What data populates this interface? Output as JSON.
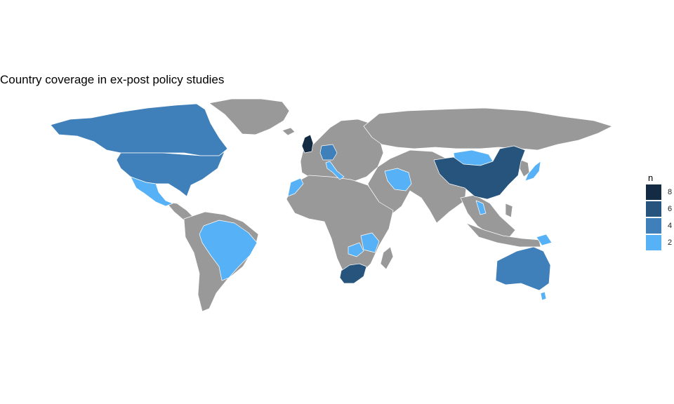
{
  "title": "Country coverage in ex-post policy studies",
  "legend": {
    "title": "n",
    "items": [
      {
        "label": "8",
        "color": "#132B43"
      },
      {
        "label": "6",
        "color": "#26547C"
      },
      {
        "label": "4",
        "color": "#3F7FBA"
      },
      {
        "label": "2",
        "color": "#56B1F7"
      }
    ]
  },
  "colors": {
    "no_data": "#999999",
    "border": "#ffffff"
  },
  "countries": [
    {
      "name": "United Kingdom",
      "n": 8
    },
    {
      "name": "China",
      "n": 6
    },
    {
      "name": "South Africa",
      "n": 6
    },
    {
      "name": "United States",
      "n": 4
    },
    {
      "name": "Canada",
      "n": 4
    },
    {
      "name": "Australia",
      "n": 4
    },
    {
      "name": "Germany",
      "n": 4
    },
    {
      "name": "Brazil",
      "n": 2
    },
    {
      "name": "Mexico",
      "n": 2
    },
    {
      "name": "Iran",
      "n": 2
    },
    {
      "name": "Mongolia",
      "n": 2
    },
    {
      "name": "Japan",
      "n": 2
    },
    {
      "name": "Tanzania",
      "n": 2
    },
    {
      "name": "Zambia",
      "n": 2
    },
    {
      "name": "Morocco",
      "n": 2
    },
    {
      "name": "Italy",
      "n": 2
    },
    {
      "name": "Vietnam",
      "n": 2
    },
    {
      "name": "Papua New Guinea",
      "n": 2
    },
    {
      "name": "New Zealand",
      "n": 2
    }
  ]
}
